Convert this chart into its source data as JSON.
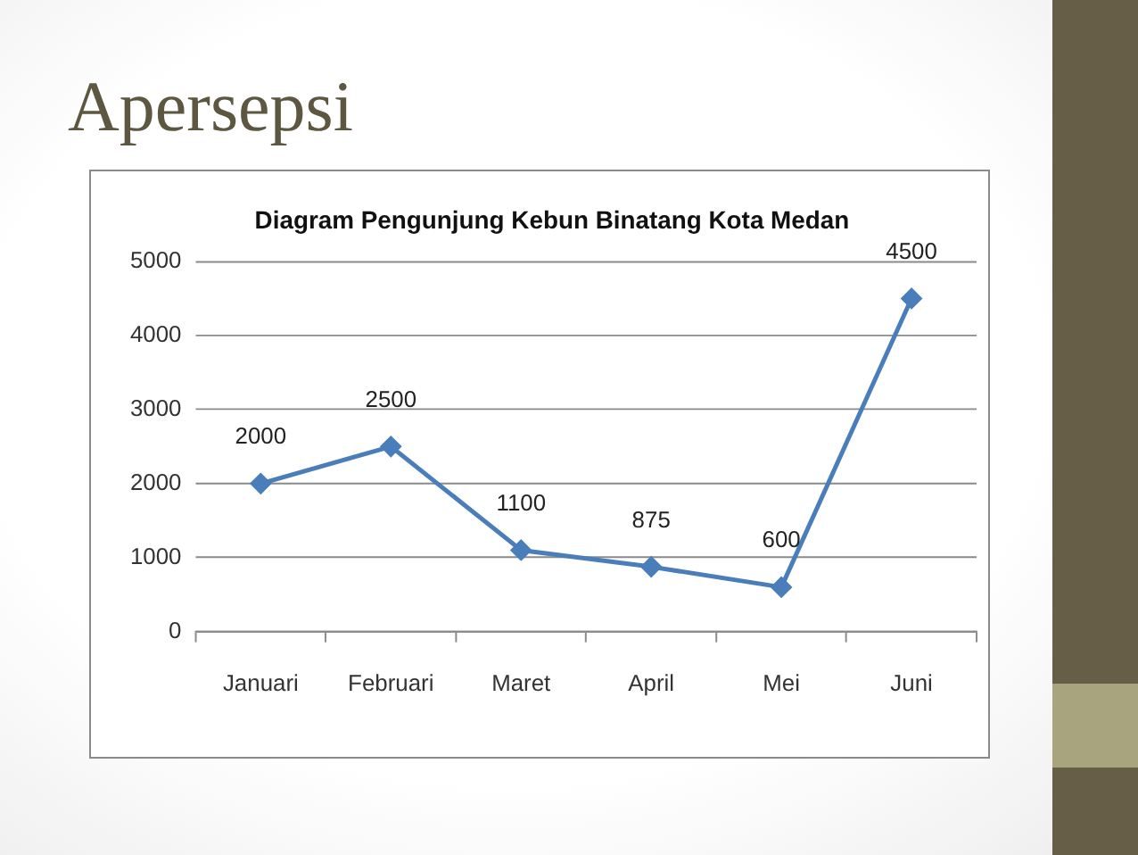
{
  "chart_data": {
    "type": "line",
    "title": "Apersepsi",
    "subtitle": "Diagram Pengunjung Kebun Binatang Kota Medan",
    "categories": [
      "Januari",
      "Februari",
      "Maret",
      "April",
      "Mei",
      "Juni"
    ],
    "series": [
      {
        "color": "#4a7ebb",
        "values": [
          2000,
          2500,
          1100,
          875,
          600,
          4500
        ]
      }
    ],
    "ylim": [
      0,
      5000
    ],
    "yticks": [
      0,
      1000,
      2000,
      3000,
      4000,
      5000
    ],
    "grid": "y",
    "marker": "diamond",
    "data_labels": true
  }
}
